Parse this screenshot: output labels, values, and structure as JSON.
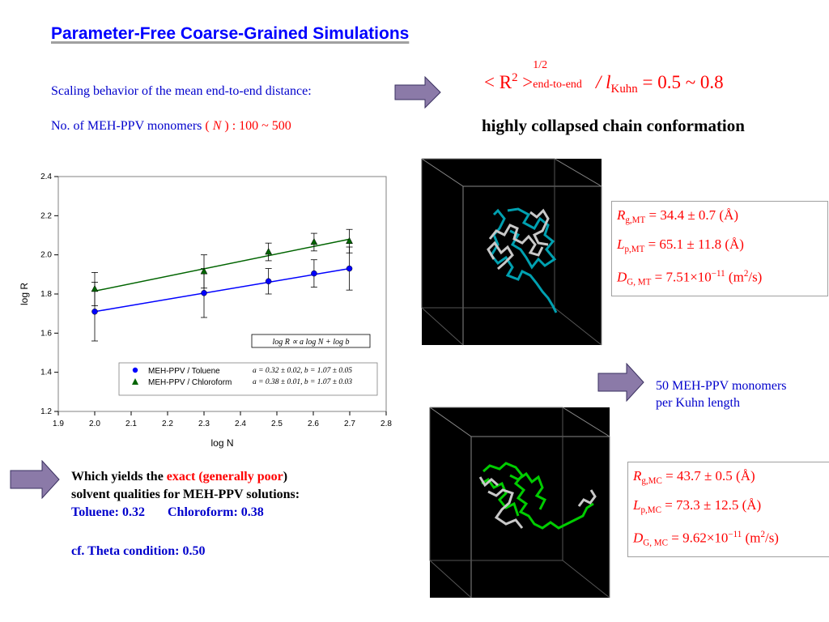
{
  "header": {
    "title": "Parameter-Free Coarse-Grained Simulations"
  },
  "scaling": {
    "line1": "Scaling behavior of the mean end-to-end distance:",
    "line2_prefix": "No. of MEH-PPV monomers",
    "line2_symbol": "N",
    "line2_range": ": 100 ~ 500"
  },
  "ratio_formula": {
    "lhs_open": "< R",
    "lhs_sup": "2",
    "lhs_close": ">",
    "exp": "1/2",
    "subscript": "end-to-end",
    "slash": "/ l",
    "l_sub": "Kuhn",
    "rhs": "= 0.5 ~ 0.8"
  },
  "conclusion": "highly collapsed chain conformation",
  "kuhn_note": {
    "line1": "50 MEH-PPV monomers",
    "line2": "per Kuhn length"
  },
  "mt_box": {
    "rg": {
      "sym": "R",
      "sub": "g,MT",
      "val": "= 34.4 ± 0.7 (Å)"
    },
    "lp": {
      "sym": "L",
      "sub": "p,MT",
      "val": "= 65.1 ± 11.8 (Å)"
    },
    "d": {
      "sym": "D",
      "sub": "G, MT",
      "val": "= 7.51×10",
      "exp": "−11",
      "unit": "(m",
      "unit_exp": "2",
      "unit_end": "/s)"
    }
  },
  "mc_box": {
    "rg": {
      "sym": "R",
      "sub": "g,MC",
      "val": "= 43.7 ± 0.5 (Å)"
    },
    "lp": {
      "sym": "L",
      "sub": "p,MC",
      "val": "= 73.3 ± 12.5 (Å)"
    },
    "d": {
      "sym": "D",
      "sub": "G, MC",
      "val": "= 9.62×10",
      "exp": "−11",
      "unit": "(m",
      "unit_exp": "2",
      "unit_end": "/s)"
    }
  },
  "bottom_text": {
    "l1_a": "Which yields the ",
    "l1_b": "exact (generally poor",
    "l1_c": ")",
    "l2": "solvent qualities for MEH-PPV solutions:",
    "l3_a": "Toluene: 0.32",
    "l3_b": "Chloroform: 0.38",
    "l4": "cf. Theta condition: 0.50"
  },
  "chart_data": {
    "type": "scatter",
    "xlabel": "log N",
    "ylabel": "log R",
    "xlim": [
      1.9,
      2.8
    ],
    "ylim": [
      1.2,
      2.4
    ],
    "xticks": [
      "1.9",
      "2.0",
      "2.1",
      "2.2",
      "2.3",
      "2.4",
      "2.5",
      "2.6",
      "2.7",
      "2.8"
    ],
    "yticks": [
      "1.2",
      "1.4",
      "1.6",
      "1.8",
      "2.0",
      "2.2",
      "2.4"
    ],
    "grid": false,
    "legend_position": "bottom-right",
    "formula": "log R ∝ a log N + log b",
    "series": [
      {
        "name": "MEH-PPV / Toluene",
        "marker": "circle",
        "color": "#0000ff",
        "fit": "a = 0.32 ± 0.02, b = 1.07 ± 0.05",
        "x": [
          2.0,
          2.3,
          2.477,
          2.602,
          2.699
        ],
        "y": [
          1.71,
          1.805,
          1.865,
          1.905,
          1.93
        ],
        "yerr": [
          0.15,
          0.125,
          0.065,
          0.07,
          0.11
        ],
        "line": [
          [
            2.0,
            1.71
          ],
          [
            2.699,
            1.93
          ]
        ]
      },
      {
        "name": "MEH-PPV / Chloroform",
        "marker": "triangle",
        "color": "#006400",
        "fit": "a = 0.38 ± 0.01, b = 1.07 ± 0.03",
        "x": [
          2.0,
          2.3,
          2.477,
          2.602,
          2.699
        ],
        "y": [
          1.825,
          1.915,
          2.015,
          2.065,
          2.07
        ],
        "yerr": [
          0.085,
          0.085,
          0.045,
          0.045,
          0.06
        ],
        "line": [
          [
            2.0,
            1.815
          ],
          [
            2.699,
            2.08
          ]
        ]
      }
    ]
  },
  "colors": {
    "title": "#0000ff",
    "arrow": "#8b7aa8",
    "chain_mt": "#00a0b0",
    "chain_mc": "#00cc00",
    "chain_grey": "#c8c8c8"
  }
}
